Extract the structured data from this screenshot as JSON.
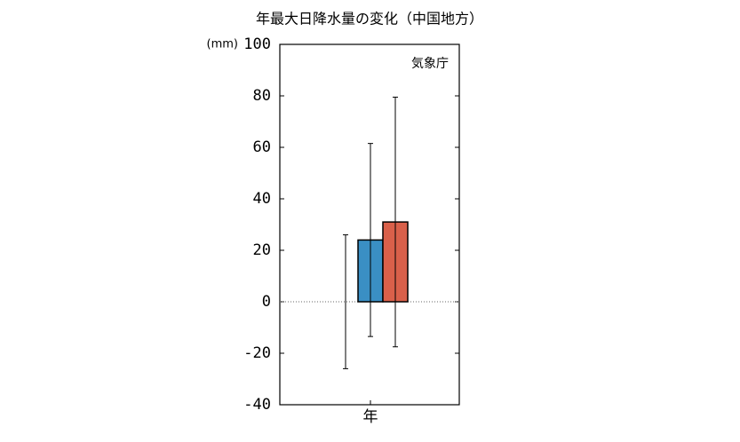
{
  "chart_data": {
    "type": "bar",
    "title": "年最大日降水量の変化（中国地方）",
    "y_label": "(mm)",
    "annotation": "気象庁",
    "categories": [
      "年"
    ],
    "series": [
      {
        "color": "#999999",
        "values": [
          0
        ],
        "errors": [
          26
        ]
      },
      {
        "color": "#3a8fc4",
        "values": [
          24
        ],
        "errors": [
          37.5
        ]
      },
      {
        "color": "#d9604a",
        "values": [
          31
        ],
        "errors": [
          48.5
        ]
      }
    ],
    "ylim": [
      -40,
      100
    ],
    "yticks": [
      -40,
      -20,
      0,
      20,
      40,
      60,
      80,
      100
    ],
    "zero_line": true
  }
}
